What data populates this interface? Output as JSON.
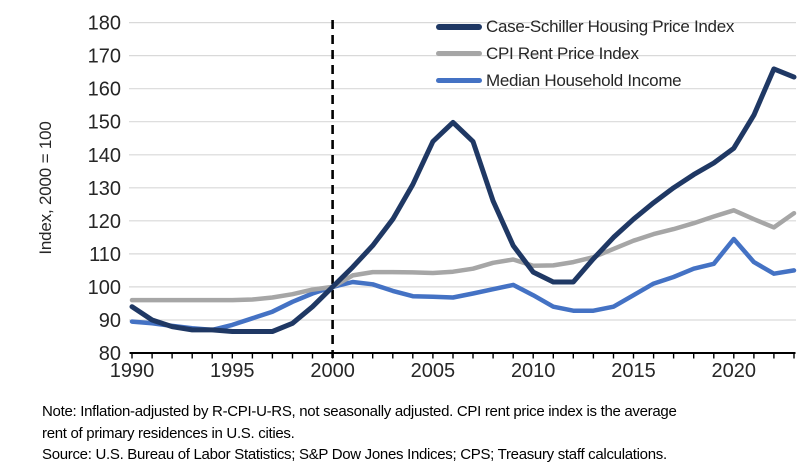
{
  "chart_data": {
    "type": "line",
    "title": "",
    "ylabel": "Index, 2000 = 100",
    "xlabel": "",
    "xlim": [
      1990,
      2023
    ],
    "ylim": [
      80,
      180
    ],
    "y_ticks": [
      80,
      90,
      100,
      110,
      120,
      130,
      140,
      150,
      160,
      170,
      180
    ],
    "x_tick_years": [
      1990,
      1995,
      2000,
      2005,
      2010,
      2015,
      2020
    ],
    "x_minor_tick_interval_years": 1,
    "grid": "horizontal",
    "reference_line_x": 2000,
    "reference_line_style": "dashed-black-vertical",
    "legend_position": "top-right",
    "years": [
      1990,
      1991,
      1992,
      1993,
      1994,
      1995,
      1996,
      1997,
      1998,
      1999,
      2000,
      2001,
      2002,
      2003,
      2004,
      2005,
      2006,
      2007,
      2008,
      2009,
      2010,
      2011,
      2012,
      2013,
      2014,
      2015,
      2016,
      2017,
      2018,
      2019,
      2020,
      2021,
      2022,
      2023
    ],
    "series": [
      {
        "name": "Case-Schiller Housing Price Index",
        "color": "#1f3864",
        "values": [
          94,
          90,
          88,
          87,
          87,
          86.5,
          86.5,
          86.5,
          89,
          94,
          100,
          106,
          112.5,
          120.5,
          131,
          144,
          149.8,
          144,
          126,
          112.5,
          104.5,
          101.5,
          101.5,
          108.5,
          115,
          120.5,
          125.5,
          130,
          134,
          137.5,
          142,
          152,
          166,
          163.5
        ]
      },
      {
        "name": "CPI Rent Price Index",
        "color": "#a6a6a6",
        "values": [
          96,
          96,
          96,
          96,
          96,
          96,
          96.2,
          96.8,
          97.8,
          99.2,
          100,
          103.5,
          104.5,
          104.5,
          104.4,
          104.2,
          104.6,
          105.5,
          107.3,
          108.3,
          106.4,
          106.5,
          107.5,
          109,
          111.5,
          114,
          116,
          117.5,
          119.3,
          121.3,
          123.2,
          120.5,
          118,
          122.3
        ]
      },
      {
        "name": "Median Household Income",
        "color": "#4472c4",
        "values": [
          89.5,
          89,
          88.2,
          87.5,
          87,
          88.5,
          90.5,
          92.5,
          95.5,
          98,
          100,
          101.5,
          100.8,
          98.8,
          97.2,
          97,
          96.8,
          98,
          99.3,
          100.6,
          97.5,
          94,
          92.8,
          92.8,
          94,
          97.5,
          101,
          103,
          105.5,
          107,
          114.5,
          107.5,
          104,
          105
        ]
      }
    ]
  },
  "notes": {
    "line1": "Note: Inflation-adjusted by R-CPI-U-RS, not seasonally adjusted. CPI rent price index is the average",
    "line2": "rent of primary residences in U.S. cities.",
    "line3": "Source: U.S. Bureau of Labor Statistics; S&P Dow Jones Indices; CPS; Treasury staff calculations."
  },
  "colors": {
    "grid": "#d9d9d9",
    "axis": "#000000",
    "tick_label": "#262626",
    "reference_line": "#000000",
    "note_text": "#000000"
  }
}
